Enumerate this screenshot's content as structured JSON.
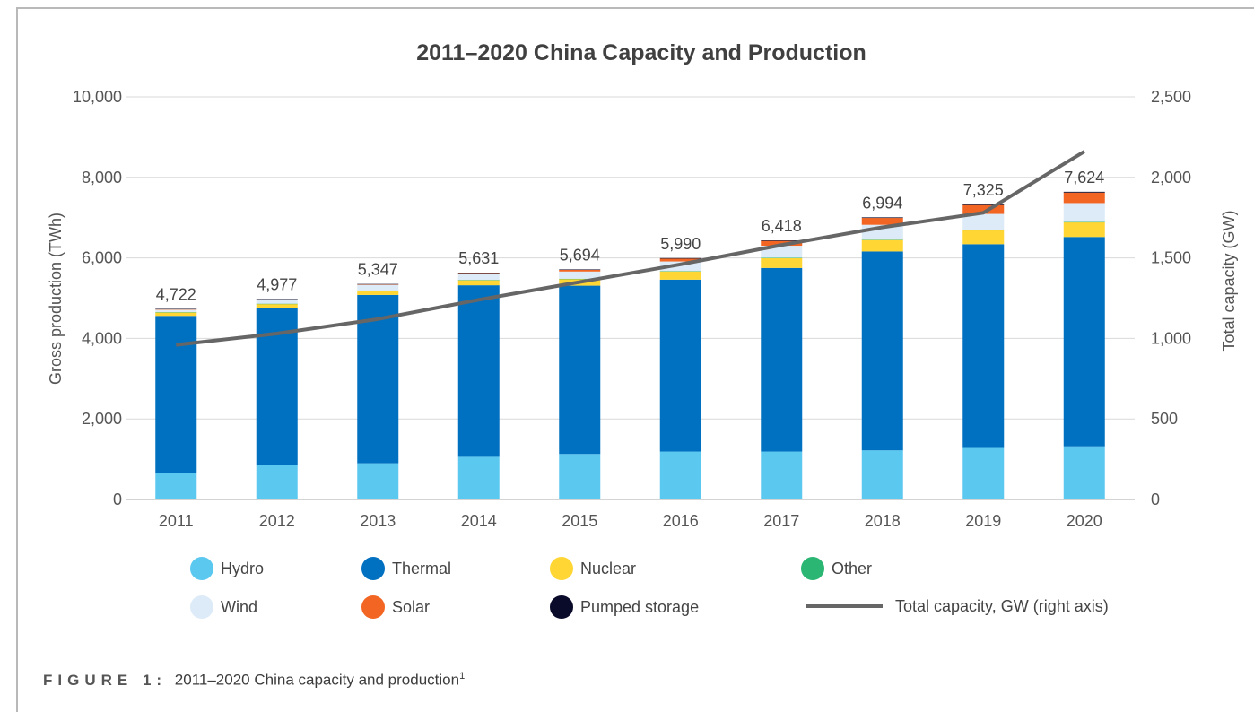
{
  "chart_data": {
    "type": "bar",
    "stacked": true,
    "title": "2011–2020 China Capacity and Production",
    "ylabel": "Gross production (TWh)",
    "y2label": "Total capacity (GW)",
    "ylim": [
      0,
      10000
    ],
    "y2lim": [
      0,
      2500
    ],
    "yticks": [
      "10,000",
      "8,000",
      "6,000",
      "4,000",
      "2,000",
      "0"
    ],
    "y2ticks": [
      "2,500",
      "2,000",
      "1,500",
      "1,000",
      "500",
      "0"
    ],
    "grid": true,
    "legend_position": "bottom",
    "categories": [
      "2011",
      "2012",
      "2013",
      "2014",
      "2015",
      "2016",
      "2017",
      "2018",
      "2019",
      "2020"
    ],
    "totals_labels": [
      "4,722",
      "4,977",
      "5,347",
      "5,631",
      "5,694",
      "5,990",
      "6,418",
      "6,994",
      "7,325",
      "7,624"
    ],
    "series": [
      {
        "name": "Hydro",
        "color": "#5bc8f0",
        "values": [
          660,
          860,
          900,
          1060,
          1130,
          1190,
          1190,
          1220,
          1280,
          1320
        ]
      },
      {
        "name": "Thermal",
        "color": "#0070c0",
        "values": [
          3900,
          3900,
          4180,
          4260,
          4180,
          4270,
          4560,
          4940,
          5060,
          5200
        ]
      },
      {
        "name": "Nuclear",
        "color": "#ffd633",
        "values": [
          90,
          100,
          110,
          130,
          170,
          210,
          250,
          290,
          350,
          370
        ]
      },
      {
        "name": "Other",
        "color": "#2bb673",
        "values": [
          2,
          2,
          2,
          2,
          2,
          2,
          2,
          2,
          2,
          2
        ]
      },
      {
        "name": "Wind",
        "color": "#dcebf7",
        "values": [
          70,
          100,
          140,
          150,
          180,
          240,
          300,
          370,
          400,
          470
        ]
      },
      {
        "name": "Solar",
        "color": "#f26522",
        "values": [
          3,
          6,
          10,
          20,
          40,
          70,
          120,
          170,
          220,
          260
        ]
      },
      {
        "name": "Pumped storage",
        "color": "#0a0a2a",
        "values": [
          8,
          10,
          10,
          11,
          12,
          13,
          14,
          15,
          17,
          20
        ]
      }
    ],
    "line_series": {
      "name": "Total capacity, GW (right axis)",
      "color": "#666666",
      "axis": "right",
      "values": [
        960,
        1030,
        1120,
        1240,
        1350,
        1460,
        1580,
        1690,
        1780,
        2160
      ]
    },
    "legend": [
      {
        "label": "Hydro",
        "color": "#5bc8f0",
        "kind": "dot"
      },
      {
        "label": "Thermal",
        "color": "#0070c0",
        "kind": "dot"
      },
      {
        "label": "Nuclear",
        "color": "#ffd633",
        "kind": "dot"
      },
      {
        "label": "Other",
        "color": "#2bb673",
        "kind": "dot"
      },
      {
        "label": "Wind",
        "color": "#dcebf7",
        "kind": "dot"
      },
      {
        "label": "Solar",
        "color": "#f26522",
        "kind": "dot"
      },
      {
        "label": "Pumped storage",
        "color": "#0a0a2a",
        "kind": "dot"
      },
      {
        "label": "Total capacity, GW (right axis)",
        "color": "#666666",
        "kind": "line"
      }
    ]
  },
  "caption": {
    "figure_label": "FIGURE 1:",
    "text": "2011–2020 China capacity and production",
    "footnote": "1"
  }
}
